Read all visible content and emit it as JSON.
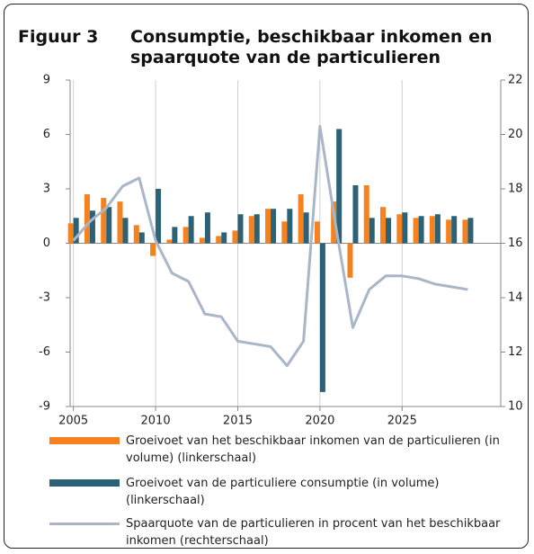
{
  "chart_data": {
    "type": "bar-line",
    "label": "Figuur 3",
    "title": "Consumptie, beschikbaar inkomen en spaarquote van de particulieren",
    "x": [
      2005,
      2006,
      2007,
      2008,
      2009,
      2010,
      2011,
      2012,
      2013,
      2014,
      2015,
      2016,
      2017,
      2018,
      2019,
      2020,
      2021,
      2022,
      2023,
      2024,
      2025,
      2026,
      2027,
      2028,
      2029
    ],
    "xlim": [
      2004.8,
      2031
    ],
    "xticks": [
      2005,
      2010,
      2015,
      2020,
      2025
    ],
    "ylim": [
      -9,
      9
    ],
    "yticks": [
      -9,
      -6,
      -3,
      0,
      3,
      6,
      9
    ],
    "y2lim": [
      10,
      22
    ],
    "y2ticks": [
      10,
      12,
      14,
      16,
      18,
      20,
      22
    ],
    "grid": true,
    "series": [
      {
        "name": "Groeivoet van het beschikbaar inkomen van de particulieren (in volume) (linkerschaal)",
        "type": "bar",
        "color": "#f5821f",
        "values": [
          1.1,
          2.7,
          2.5,
          2.3,
          1.0,
          -0.7,
          0.2,
          0.9,
          0.3,
          0.4,
          0.7,
          1.5,
          1.9,
          1.2,
          2.7,
          1.2,
          2.3,
          -1.9,
          3.2,
          2.0,
          1.6,
          1.4,
          1.5,
          1.3,
          1.3
        ]
      },
      {
        "name": "Groeivoet van de particuliere consumptie (in volume) (linkerschaal)",
        "type": "bar",
        "color": "#2b6276",
        "values": [
          1.4,
          1.8,
          2.0,
          1.4,
          0.6,
          3.0,
          0.9,
          1.5,
          1.7,
          0.6,
          1.6,
          1.6,
          1.9,
          1.9,
          1.7,
          -8.2,
          6.3,
          3.2,
          1.4,
          1.4,
          1.7,
          1.5,
          1.6,
          1.5,
          1.4
        ]
      },
      {
        "name": "Spaarquote van de particulieren in procent van het beschikbaar inkomen (rechterschaal)",
        "type": "line",
        "axis": "y2",
        "color": "#a9b6c8",
        "values": [
          16.1,
          16.8,
          17.3,
          18.1,
          18.4,
          16.1,
          14.9,
          14.6,
          13.4,
          13.3,
          12.4,
          12.3,
          12.2,
          11.5,
          12.4,
          20.3,
          16.5,
          12.9,
          14.3,
          14.8,
          14.8,
          14.7,
          14.5,
          14.4,
          14.3
        ]
      }
    ]
  }
}
